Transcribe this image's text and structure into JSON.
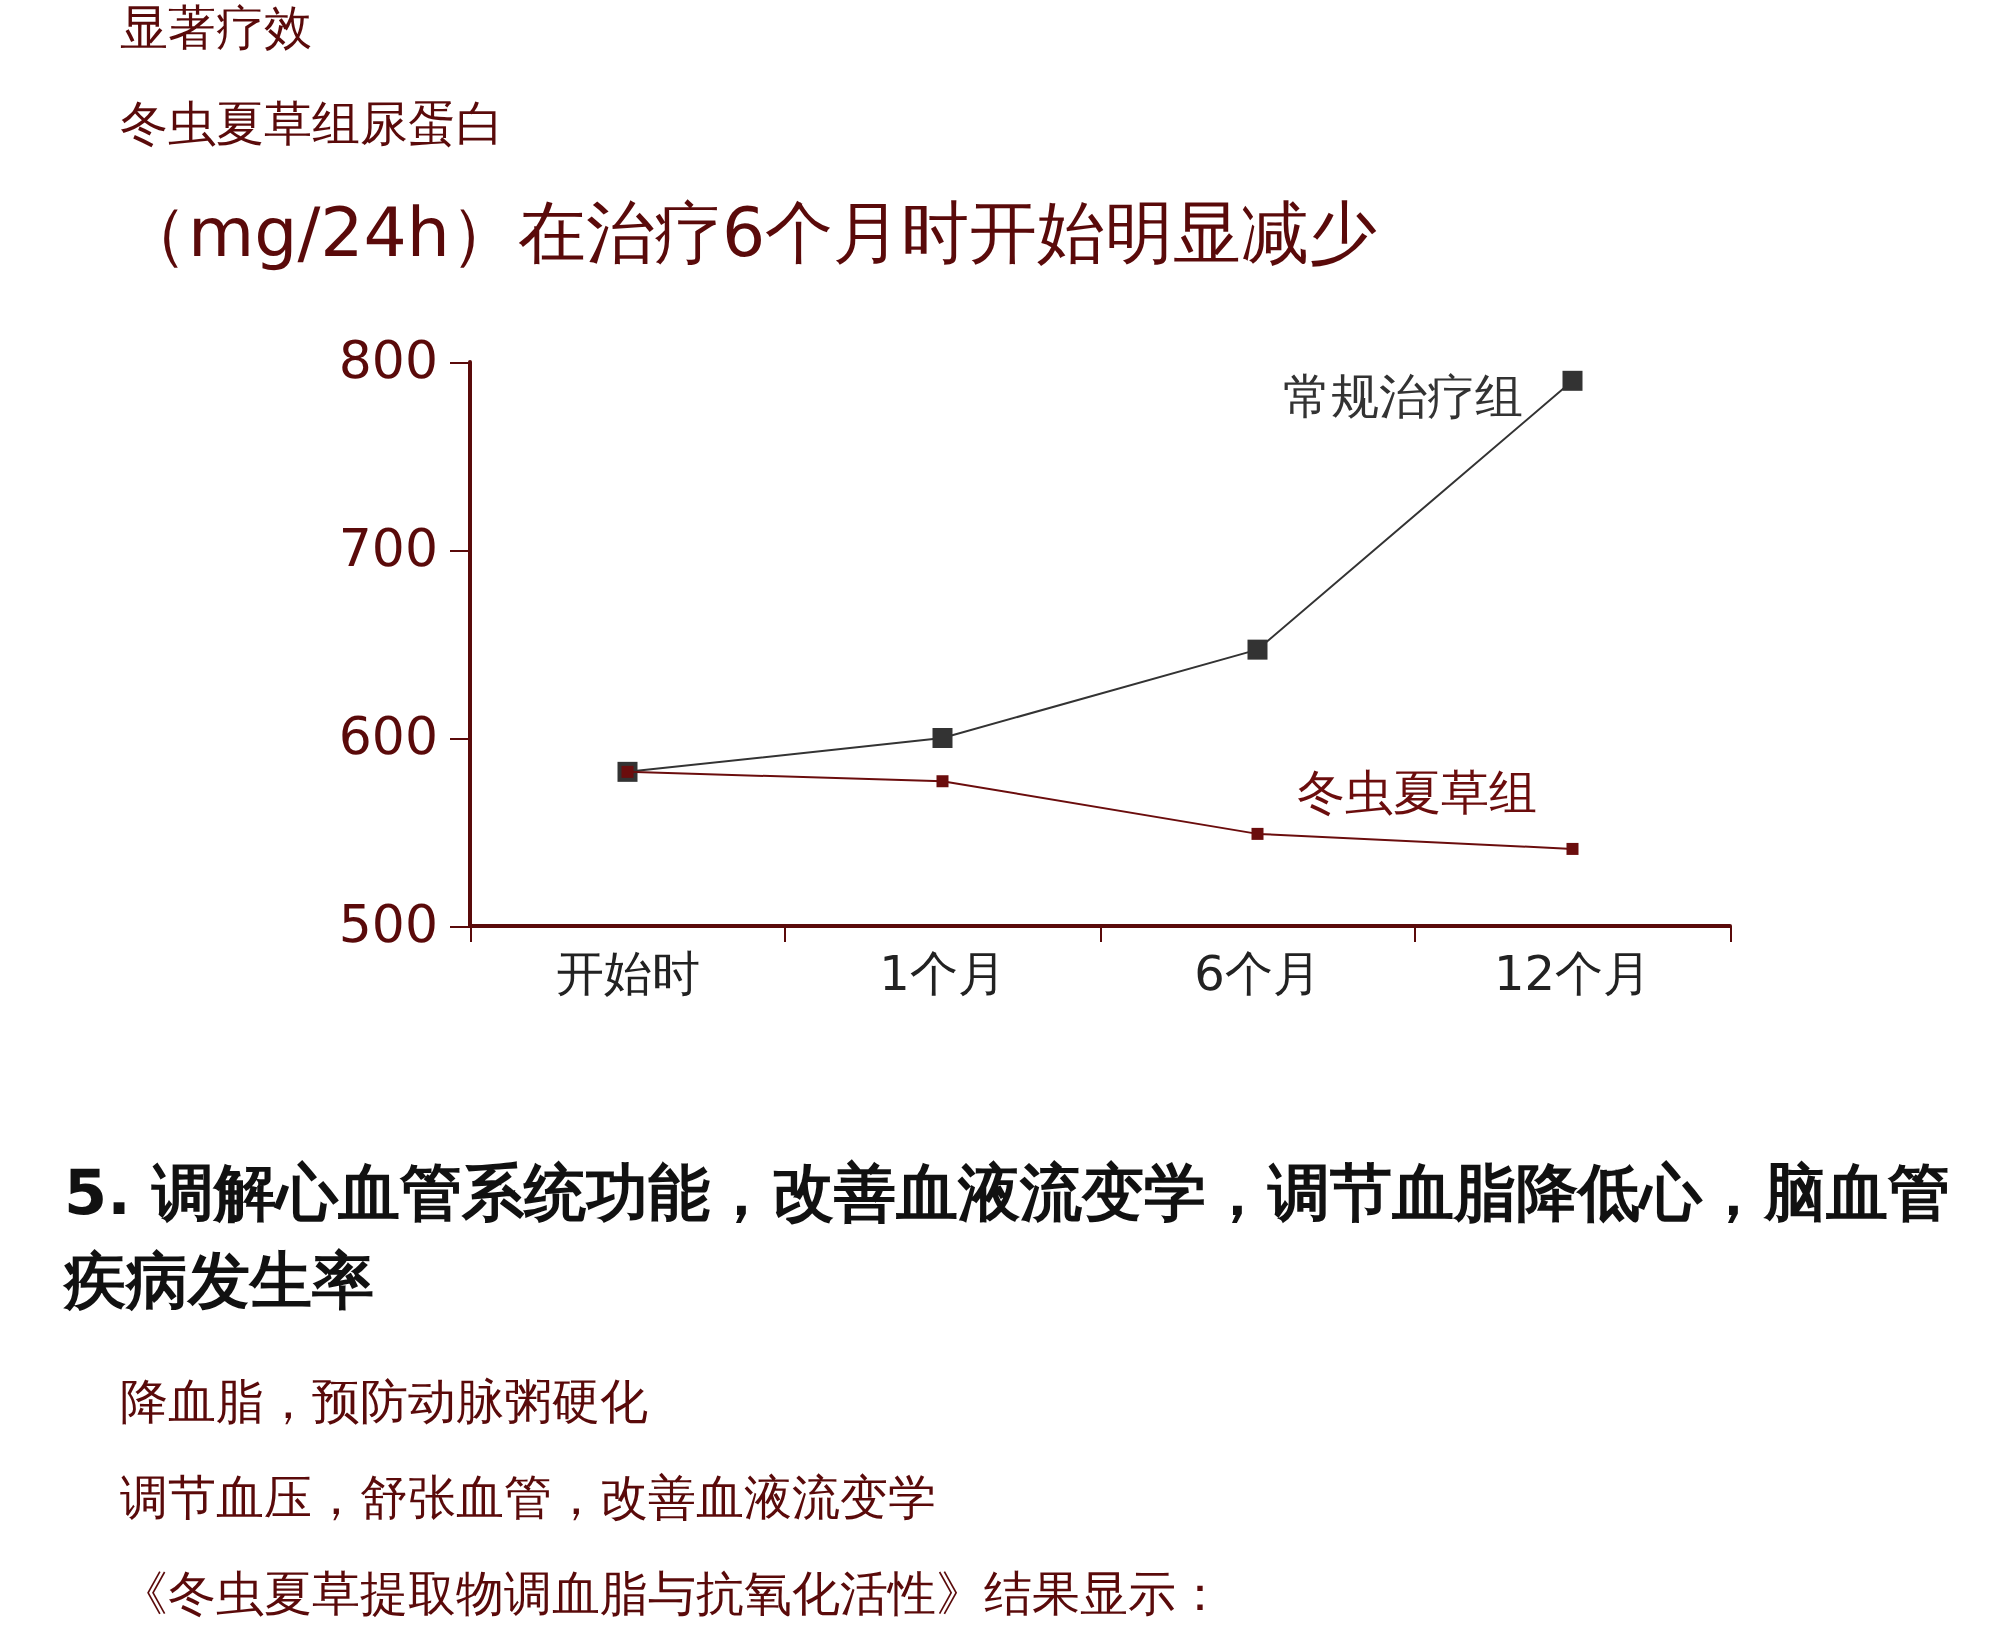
{
  "chart_data": {
    "type": "line",
    "title": "（mg/24h）在治疗6个月时开始明显减少",
    "annotations": [
      "显著疗效",
      "冬虫夏草组尿蛋白",
      "5. 调解心血管系统功能，改善血液流变学，调节血脂降低心，脑血管疾病发生率",
      "降血脂，预防动脉粥硬化",
      "调节血压，舒张血管，改善血液流变学",
      "《冬虫夏草提取物调血脂与抗氧化活性》结果显示："
    ],
    "categories": [
      "开始时",
      "1个月",
      "6个月",
      "12个月"
    ],
    "series": [
      {
        "name": "常规治疗组",
        "color": "#333333",
        "values": [
          582,
          600,
          647,
          790
        ]
      },
      {
        "name": "冬虫夏草组",
        "color": "#6b0d0d",
        "values": [
          582,
          577,
          549,
          541
        ]
      }
    ],
    "ylim": [
      500,
      800
    ],
    "yticks": [
      500,
      600,
      700,
      800
    ],
    "marker": "square"
  }
}
